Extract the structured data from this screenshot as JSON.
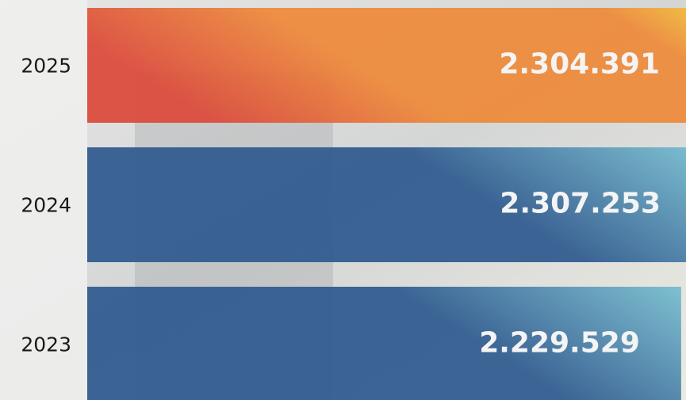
{
  "chart_data": {
    "type": "bar",
    "orientation": "horizontal",
    "categories": [
      "2025",
      "2024",
      "2023"
    ],
    "values": [
      2304391,
      2307253,
      2229529
    ],
    "value_labels": [
      "2.304.391",
      "2.307.253",
      "2.229.529"
    ],
    "colors": [
      "#ee8a3a",
      "#2f5a8f",
      "#2f5a8f"
    ]
  }
}
